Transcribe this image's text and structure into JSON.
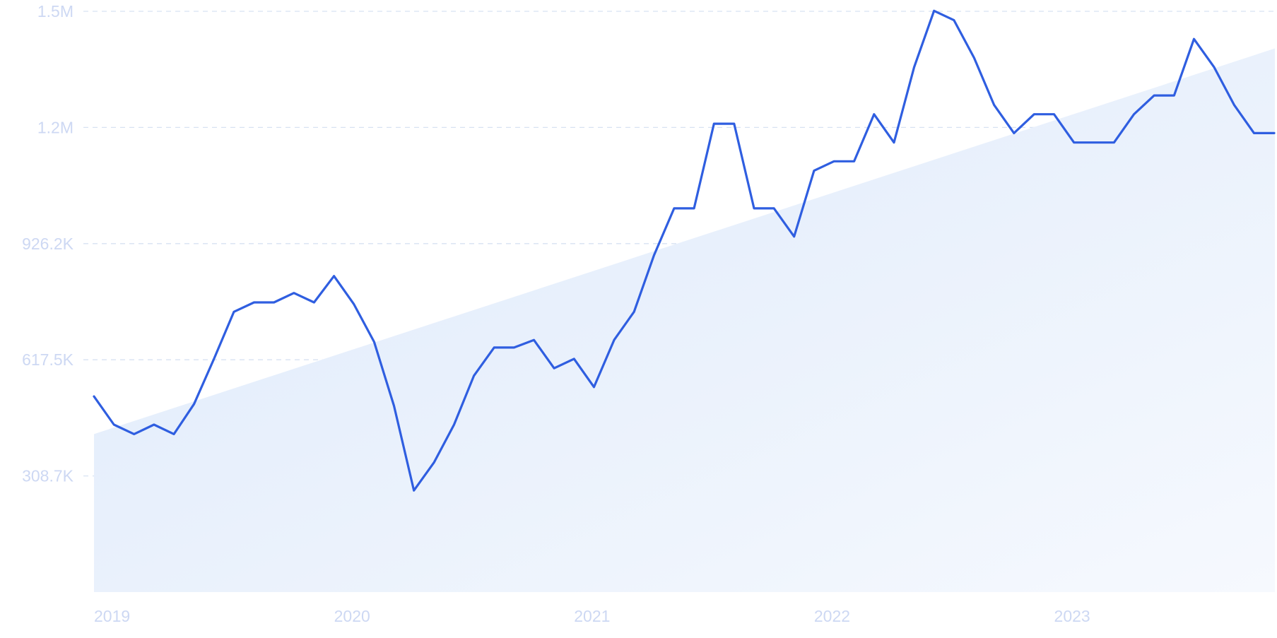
{
  "colors": {
    "line": "#2f5ee0",
    "trend_fill_start": "#dde9fa",
    "trend_fill_end": "#f6f9fe",
    "grid": "#d7e2f2",
    "tick_text": "#cdd8f3",
    "background": "#ffffff"
  },
  "chart_data": {
    "type": "line",
    "title": "",
    "xlabel": "",
    "ylabel": "",
    "grid": true,
    "legend": "none",
    "x_ticks": [
      "2019",
      "2020",
      "2021",
      "2022",
      "2023"
    ],
    "x_tick_values": [
      2019,
      2020,
      2021,
      2022,
      2023
    ],
    "y_ticks": [
      "308.7K",
      "617.5K",
      "926.2K",
      "1.2M",
      "1.5M"
    ],
    "y_tick_values": [
      308700,
      617500,
      926200,
      1235000,
      1543700
    ],
    "xlim": [
      2019,
      2023.92
    ],
    "ylim": [
      0,
      1543700
    ],
    "series": [
      {
        "x": [
          2019.0,
          2019.083,
          2019.167,
          2019.25,
          2019.333,
          2019.417,
          2019.5,
          2019.583,
          2019.667,
          2019.75,
          2019.833,
          2019.917,
          2020.0,
          2020.083,
          2020.167,
          2020.25,
          2020.333,
          2020.417,
          2020.5,
          2020.583,
          2020.667,
          2020.75,
          2020.833,
          2020.917,
          2021.0,
          2021.083,
          2021.167,
          2021.25,
          2021.333,
          2021.417,
          2021.5,
          2021.583,
          2021.667,
          2021.75,
          2021.833,
          2021.917,
          2022.0,
          2022.083,
          2022.167,
          2022.25,
          2022.333,
          2022.417,
          2022.5,
          2022.583,
          2022.667,
          2022.75,
          2022.833,
          2022.917,
          2023.0,
          2023.083,
          2023.167,
          2023.25,
          2023.333,
          2023.417,
          2023.5,
          2023.583,
          2023.667,
          2023.75,
          2023.833,
          2023.917
        ],
        "values": [
          520000,
          445000,
          420000,
          445000,
          420000,
          500000,
          620000,
          745000,
          770000,
          770000,
          795000,
          770000,
          840000,
          765000,
          665000,
          495000,
          270000,
          345000,
          445000,
          575000,
          650000,
          650000,
          670000,
          595000,
          620000,
          545000,
          670000,
          745000,
          895000,
          1020000,
          1020000,
          1245000,
          1245000,
          1020000,
          1020000,
          945000,
          1120000,
          1145000,
          1145000,
          1270000,
          1195000,
          1395000,
          1545000,
          1520000,
          1420000,
          1295000,
          1220000,
          1270000,
          1270000,
          1195000,
          1195000,
          1195000,
          1270000,
          1320000,
          1320000,
          1470000,
          1395000,
          1295000,
          1220000,
          1220000
        ]
      }
    ],
    "trend": {
      "start": 420000,
      "end": 1445000
    }
  }
}
